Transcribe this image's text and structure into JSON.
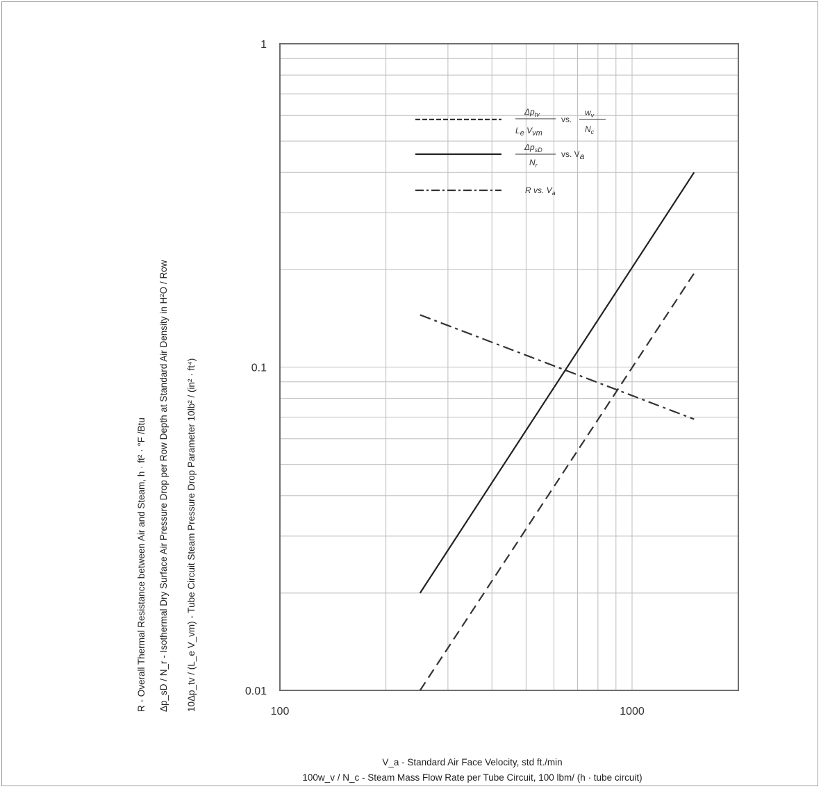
{
  "chart_data": {
    "type": "line",
    "x_scale": "log",
    "y_scale": "log",
    "xlim": [
      100,
      2000
    ],
    "ylim": [
      0.01,
      1
    ],
    "grid": true,
    "legend_position": "top-center",
    "x_tick_labels": [
      "100",
      "1000"
    ],
    "y_tick_labels": [
      "1",
      "0.1",
      "0.01"
    ],
    "xlabel": [
      "V_a - Standard Air Face Velocity, std ft./min",
      "100w_v / N_c - Steam Mass Flow Rate per Tube Circuit, 100 lbm/ (h · tube circuit)"
    ],
    "ylabel": [
      "R - Overall Thermal Resistance between Air and Steam, h · ft² · °F /Btu",
      "Δp_sD / N_r - Isothermal Dry Surface Air Pressure Drop per Row Depth at Standard Air Density in H²O / Row",
      "10Δp_tv / (L_e V_vm) - Tube Circuit Steam Pressure Drop Parameter 10lb² / (in² · ft⁴)"
    ],
    "series": [
      {
        "name": "Δp_tv / (L_e V_vm) vs. w_v / N_c",
        "style": "dashed",
        "color": "#333333",
        "points": [
          [
            250,
            0.01
          ],
          [
            1500,
            0.195
          ]
        ]
      },
      {
        "name": "Δp_sD / N_r vs. V_a",
        "style": "solid",
        "color": "#222222",
        "points": [
          [
            250,
            0.02
          ],
          [
            1500,
            0.4
          ]
        ]
      },
      {
        "name": "R vs. V_a",
        "style": "dashdot",
        "color": "#333333",
        "points": [
          [
            250,
            0.145
          ],
          [
            1500,
            0.069
          ]
        ]
      }
    ]
  },
  "legend": {
    "entries": [
      {
        "num": "Δp",
        "num_sub": "tv",
        "den": "L",
        "den_sub": "e",
        "den_tail": " V",
        "den_tail_sub": "vm",
        "vs": "vs.",
        "rhs_num": "w",
        "rhs_num_sub": "v",
        "rhs_den": "N",
        "rhs_den_sub": "c"
      },
      {
        "num": "Δp",
        "num_sub": "sD",
        "den": "N",
        "den_sub": "r",
        "vs": "vs. V",
        "vs_sub": "a"
      },
      {
        "text": "R vs. V",
        "text_sub": "a"
      }
    ]
  }
}
